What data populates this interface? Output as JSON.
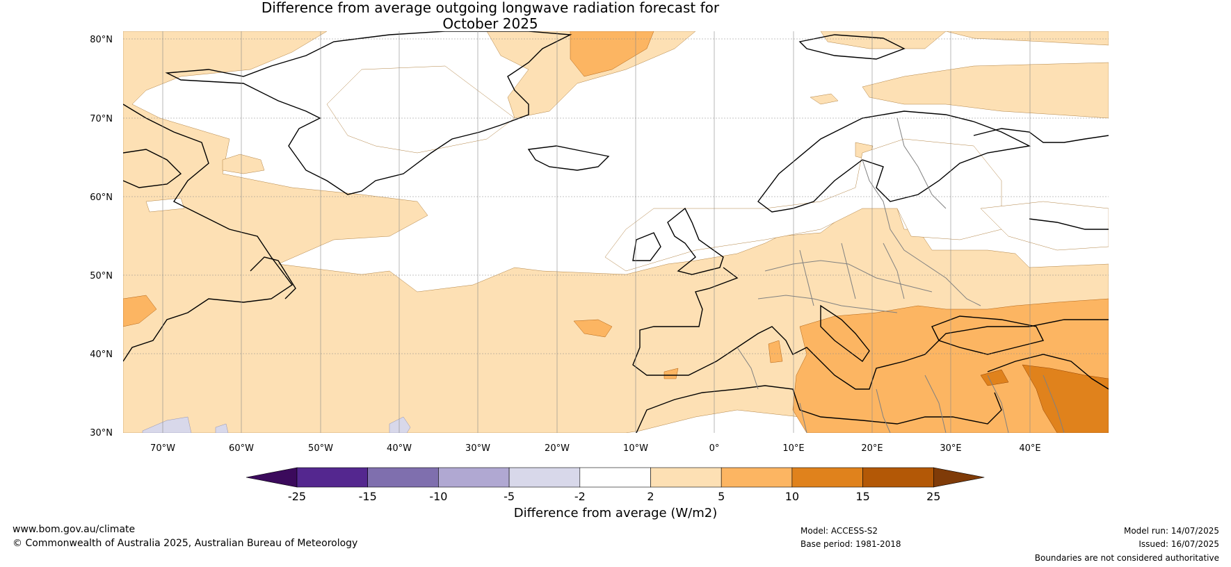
{
  "title_line1": "Difference from average outgoing longwave radiation forecast for",
  "title_line2": "October 2025",
  "lat_labels": [
    "80°N",
    "70°N",
    "60°N",
    "50°N",
    "40°N",
    "30°N"
  ],
  "lon_labels": [
    "70°W",
    "60°W",
    "50°W",
    "40°W",
    "30°W",
    "20°W",
    "10°W",
    "0°",
    "10°E",
    "20°E",
    "30°E",
    "40°E"
  ],
  "colorbar": {
    "title": "Difference from average (W/m2)",
    "ticks": [
      "-25",
      "-15",
      "-10",
      "-5",
      "-2",
      "2",
      "5",
      "10",
      "15",
      "25"
    ],
    "colors": [
      "#3b0a5c",
      "#54278f",
      "#7f6fae",
      "#b0a8d2",
      "#d8d8ea",
      "#ffffff",
      "#fde0b4",
      "#fcb562",
      "#e0821c",
      "#b35806",
      "#7f3b08"
    ]
  },
  "footer": {
    "website": "www.bom.gov.au/climate",
    "copyright": "© Commonwealth of Australia 2025, Australian Bureau of Meteorology",
    "model": "Model: ACCESS-S2",
    "base_period": "Base period: 1981-2018",
    "model_run": "Model run: 14/07/2025",
    "issued": "Issued: 16/07/2025",
    "disclaimer": "Boundaries are not considered authoritative"
  }
}
